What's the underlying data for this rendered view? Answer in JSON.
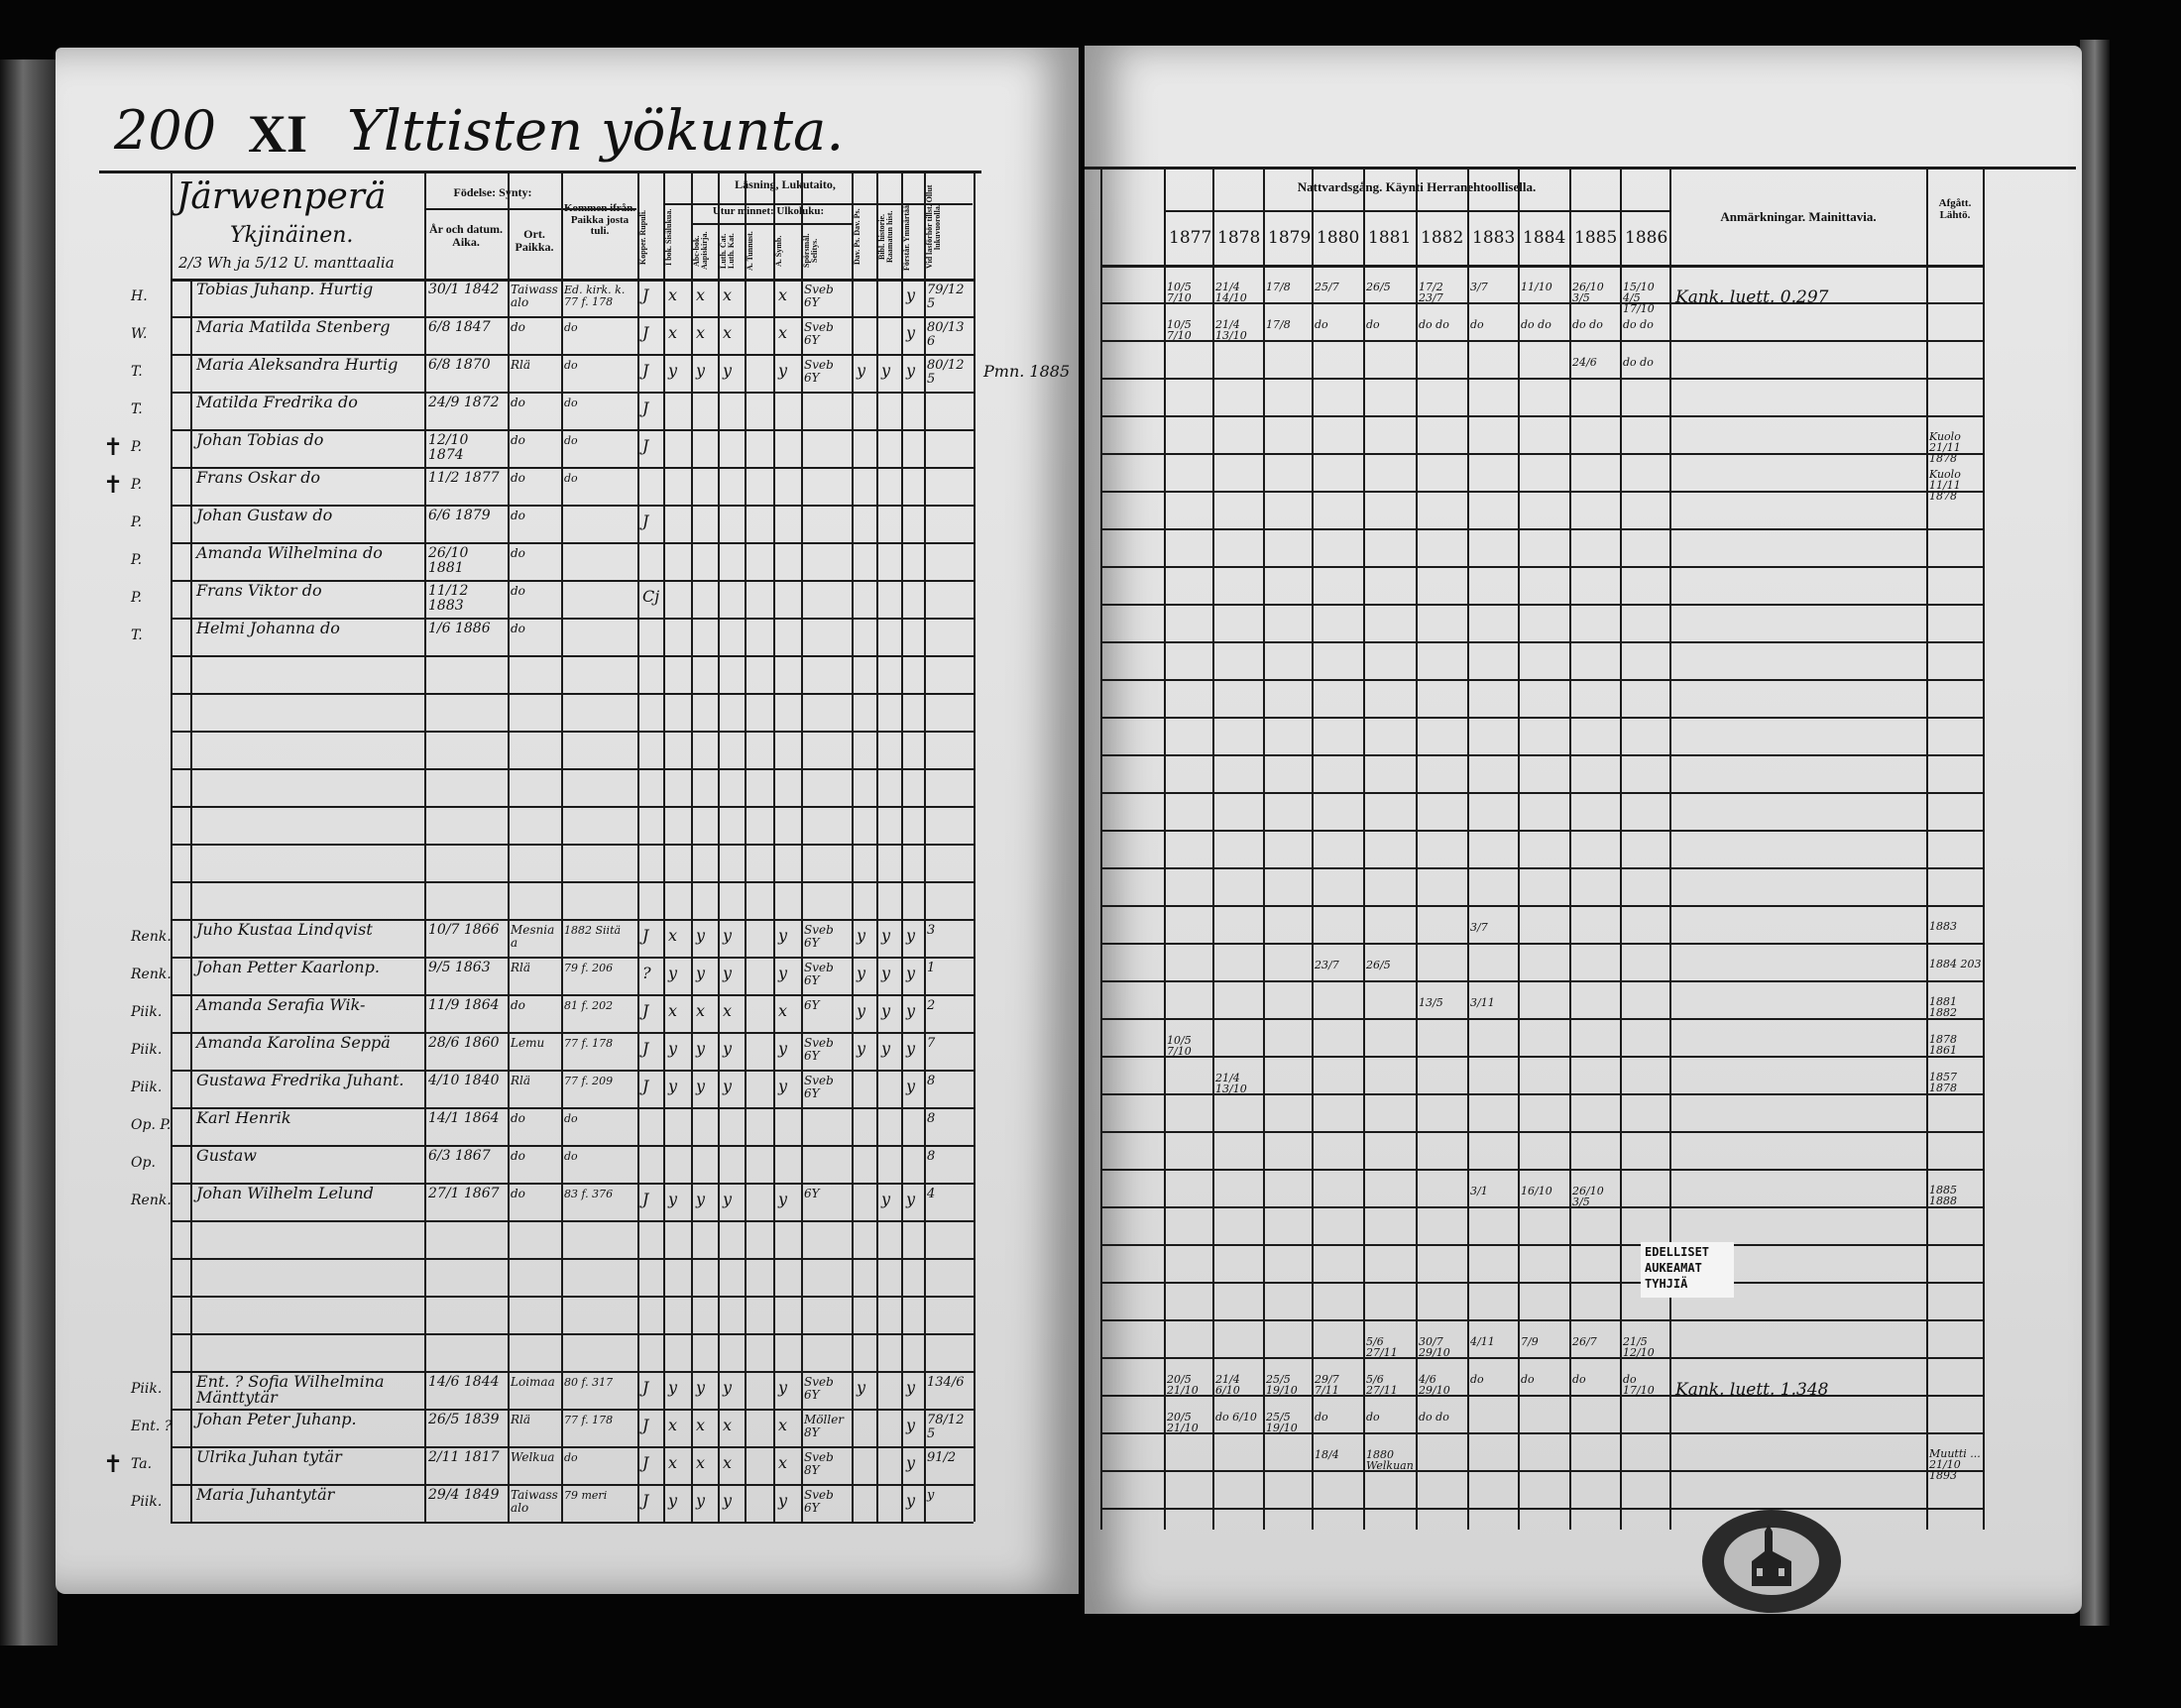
{
  "title": {
    "page_number": "200",
    "roman": "XI",
    "text": "Ylttisten yökunta."
  },
  "left_header": {
    "village": "Järwenperä",
    "holding": "Ykjinäinen.",
    "mantal": "2/3 Wh ja 5/12 U. manttaalia",
    "birth": "Födelse: Synty:",
    "year_date": "År och datum. Aika.",
    "place": "Ort. Paikka.",
    "came_from": "Kommen ifrån. Paikka josta tuli.",
    "reading": "Läsning, Lukutaito,",
    "by_heart": "Utur minnet: Ulkoluku:",
    "columns": [
      "Kopper. Rupuli.",
      "I bok. Sisälukua.",
      "Abc-bok. Aapiskirja.",
      "Luth. Cat. Luth. Kat.",
      "A. Tunnust.",
      "A. Symb.",
      "Spörsmål. Selitys.",
      "Dav. Ps. Dav. Ps.",
      "Bibl. historie. Raamatun hist.",
      "Förstår. Ymmärtää.",
      "Vid lasförhör tillst. Ollut lukuvuorolla."
    ]
  },
  "right_header": {
    "communion": "Nattvardsgång. Käynti Herranehtoollisella.",
    "years": [
      "1877",
      "1878",
      "1879",
      "1880",
      "1881",
      "1882",
      "1883",
      "1884",
      "1885",
      "1886"
    ],
    "remarks": "Anmärkningar. Mainittavia.",
    "departed": "Afgått. Lähtö."
  },
  "households": [
    [
      {
        "mark": "H.",
        "name": "Tobias Juhanp. Hurtig",
        "born": "30/1 1842",
        "place": "Taiwassalo",
        "from": "Ed. kirk. k. 77 f. 178",
        "marks": [
          "J",
          "x",
          "x",
          "x",
          "",
          "x",
          "Sveb 6Y",
          "",
          "",
          "y",
          "79/125"
        ],
        "communion": [
          "10/5 7/10",
          "21/4 14/10",
          "17/8",
          "25/7",
          "26/5",
          "17/2 23/7",
          "3/7",
          "11/10",
          "26/10 3/5",
          "15/10 4/5 17/10"
        ],
        "remark": "Kank. luett. 0.297",
        "departed": "",
        "cross": false
      },
      {
        "mark": "W.",
        "name": "Maria Matilda Stenberg",
        "born": "6/8 1847",
        "place": "do",
        "from": "do",
        "marks": [
          "J",
          "x",
          "x",
          "x",
          "",
          "x",
          "Sveb 6Y",
          "",
          "",
          "y",
          "80/136"
        ],
        "communion": [
          "10/5 7/10",
          "21/4 13/10",
          "17/8",
          "do",
          "do",
          "do do",
          "do",
          "do do",
          "do do",
          "do do"
        ],
        "remark": "",
        "departed": "",
        "cross": false
      },
      {
        "mark": "T.",
        "name": "Maria Aleksandra Hurtig",
        "born": "6/8 1870",
        "place": "Rlä",
        "from": "do",
        "marks": [
          "J",
          "y",
          "y",
          "y",
          "",
          "y",
          "Sveb 6Y",
          "y",
          "y",
          "y",
          "80/125"
        ],
        "communion": [
          "",
          "",
          "",
          "",
          "",
          "",
          "",
          "",
          "24/6",
          "do do"
        ],
        "remark": "",
        "side_note": "Pmn. 1885",
        "departed": "",
        "cross": false
      },
      {
        "mark": "T.",
        "name": "Matilda Fredrika do",
        "born": "24/9 1872",
        "place": "do",
        "from": "do",
        "marks": [
          "J",
          "",
          "",
          "",
          "",
          "",
          "",
          "",
          "",
          "",
          ""
        ],
        "communion": [],
        "remark": "",
        "departed": "",
        "cross": false
      },
      {
        "mark": "P.",
        "name": "Johan Tobias do",
        "born": "12/10 1874",
        "place": "do",
        "from": "do",
        "marks": [
          "J",
          "",
          "",
          "",
          "",
          "",
          "",
          "",
          "",
          "",
          ""
        ],
        "communion": [],
        "remark": "",
        "departed": "Kuolo 21/11 1878",
        "cross": true
      },
      {
        "mark": "P.",
        "name": "Frans Oskar do",
        "born": "11/2 1877",
        "place": "do",
        "from": "do",
        "marks": [],
        "communion": [],
        "remark": "",
        "departed": "Kuolo 11/11 1878",
        "cross": true
      },
      {
        "mark": "P.",
        "name": "Johan Gustaw do",
        "born": "6/6 1879",
        "place": "do",
        "from": "",
        "marks": [
          "J",
          "",
          "",
          "",
          "",
          "",
          "",
          "",
          "",
          "",
          ""
        ],
        "communion": [],
        "remark": "",
        "departed": "",
        "cross": false
      },
      {
        "mark": "P.",
        "name": "Amanda Wilhelmina do",
        "born": "26/10 1881",
        "place": "do",
        "from": "",
        "marks": [],
        "communion": [],
        "remark": "",
        "departed": "",
        "cross": false
      },
      {
        "mark": "P.",
        "name": "Frans Viktor do",
        "born": "11/12 1883",
        "place": "do",
        "from": "",
        "marks": [
          "Cj",
          "",
          "",
          "",
          "",
          "",
          "",
          "",
          "",
          "",
          ""
        ],
        "communion": [],
        "remark": "",
        "departed": "",
        "cross": false
      },
      {
        "mark": "T.",
        "name": "Helmi Johanna do",
        "born": "1/6 1886",
        "place": "do",
        "from": "",
        "marks": [],
        "communion": [],
        "remark": "",
        "departed": "",
        "cross": false
      }
    ],
    [
      {
        "mark": "Renk.",
        "name": "Juho Kustaa Lindqvist",
        "born": "10/7 1866",
        "place": "Mesniaa",
        "from": "1882 Siitä",
        "marks": [
          "J",
          "x",
          "y",
          "y",
          "",
          "y",
          "Sveb 6Y",
          "y",
          "y",
          "y",
          "3"
        ],
        "communion": [
          "",
          "",
          "",
          "",
          "",
          "",
          "3/7",
          "",
          "",
          ""
        ],
        "remark": "",
        "departed": "1883",
        "cross": false
      },
      {
        "mark": "Renk.",
        "name": "Johan Petter Kaarlonp.",
        "born": "9/5 1863",
        "place": "Rlä",
        "from": "79 f. 206",
        "marks": [
          "?",
          "y",
          "y",
          "y",
          "",
          "y",
          "Sveb 6Y",
          "y",
          "y",
          "y",
          "1"
        ],
        "communion": [
          "",
          "",
          "",
          "23/7",
          "26/5",
          "",
          "",
          "",
          "",
          ""
        ],
        "remark": "",
        "departed": "1884 203",
        "cross": false
      },
      {
        "mark": "Piik.",
        "name": "Amanda Serafia Wik-",
        "born": "11/9 1864",
        "place": "do",
        "from": "81 f. 202",
        "marks": [
          "J",
          "x",
          "x",
          "x",
          "",
          "x",
          "6Y",
          "y",
          "y",
          "y",
          "2"
        ],
        "communion": [
          "",
          "",
          "",
          "",
          "",
          "13/5",
          "3/11",
          "",
          "",
          ""
        ],
        "remark": "",
        "departed": "1881 1882",
        "cross": false
      },
      {
        "mark": "Piik.",
        "name": "Amanda Karolina Seppä",
        "born": "28/6 1860",
        "place": "Lemu",
        "from": "77 f. 178",
        "marks": [
          "J",
          "y",
          "y",
          "y",
          "",
          "y",
          "Sveb 6Y",
          "y",
          "y",
          "y",
          "7"
        ],
        "communion": [
          "10/5 7/10",
          "",
          "",
          "",
          "",
          "",
          "",
          "",
          "",
          ""
        ],
        "remark": "",
        "departed": "1878 1861",
        "cross": false
      },
      {
        "mark": "Piik.",
        "name": "Gustawa Fredrika Juhant.",
        "born": "4/10 1840",
        "place": "Rlä",
        "from": "77 f. 209",
        "marks": [
          "J",
          "y",
          "y",
          "y",
          "",
          "y",
          "Sveb 6Y",
          "",
          "",
          "y",
          "8"
        ],
        "communion": [
          "",
          "21/4 13/10",
          "",
          "",
          "",
          "",
          "",
          "",
          "",
          ""
        ],
        "remark": "",
        "departed": "1857 1878",
        "cross": false
      },
      {
        "mark": "Op. P.",
        "name": "Karl Henrik",
        "born": "14/1 1864",
        "place": "do",
        "from": "do",
        "marks": [
          "",
          "",
          "",
          "",
          "",
          "",
          "",
          "",
          "",
          "",
          "8"
        ],
        "communion": [],
        "remark": "",
        "departed": "",
        "cross": false
      },
      {
        "mark": "Op.",
        "name": "Gustaw",
        "born": "6/3 1867",
        "place": "do",
        "from": "do",
        "marks": [
          "",
          "",
          "",
          "",
          "",
          "",
          "",
          "",
          "",
          "",
          "8"
        ],
        "communion": [],
        "remark": "",
        "departed": "",
        "cross": false
      },
      {
        "mark": "Renk.",
        "name": "Johan Wilhelm Lelund",
        "born": "27/1 1867",
        "place": "do",
        "from": "83 f. 376",
        "marks": [
          "J",
          "y",
          "y",
          "y",
          "",
          "y",
          "6Y",
          "",
          "y",
          "y",
          "4"
        ],
        "communion": [
          "",
          "",
          "",
          "",
          "",
          "",
          "3/1",
          "16/10",
          "26/10 3/5",
          ""
        ],
        "remark": "",
        "departed": "1885 1888",
        "cross": false
      }
    ],
    [
      {
        "mark": "",
        "name": "",
        "born": "",
        "place": "",
        "from": "",
        "marks": [],
        "communion": [
          "",
          "",
          "",
          "",
          "5/6 27/11",
          "30/7 29/10",
          "4/11",
          "7/9",
          "26/7",
          "21/5 12/10"
        ],
        "remark": "",
        "departed": "",
        "cross": false
      },
      {
        "mark": "Piik.",
        "name": "Ent. ? Sofia Wilhelmina Mänttytär",
        "born": "14/6 1844",
        "place": "Loimaa",
        "from": "80 f. 317",
        "marks": [
          "J",
          "y",
          "y",
          "y",
          "",
          "y",
          "Sveb 6Y",
          "y",
          "",
          "y",
          "134/6"
        ],
        "communion": [
          "20/5 21/10",
          "21/4 6/10",
          "25/5 19/10",
          "29/7 7/11",
          "5/6 27/11",
          "4/6 29/10",
          "do",
          "do",
          "do",
          "do 17/10"
        ],
        "remark": "Kank. luett. 1.348",
        "departed": "",
        "cross": false
      },
      {
        "mark": "Ent. ?",
        "name": "Johan Peter Juhanp.",
        "born": "26/5 1839",
        "place": "Rlä",
        "from": "77 f. 178",
        "marks": [
          "J",
          "x",
          "x",
          "x",
          "",
          "x",
          "Möller 8Y",
          "",
          "",
          "y",
          "78/125"
        ],
        "communion": [
          "20/5 21/10",
          "do 6/10",
          "25/5 19/10",
          "do",
          "do",
          "do do",
          "",
          "",
          "",
          ""
        ],
        "remark": "",
        "departed": "",
        "cross": false
      },
      {
        "mark": "Ta.",
        "name": "Ulrika Juhan tytär",
        "born": "2/11 1817",
        "place": "Welkua",
        "from": "do",
        "marks": [
          "J",
          "x",
          "x",
          "x",
          "",
          "x",
          "Sveb 8Y",
          "",
          "",
          "y",
          "91/2"
        ],
        "communion": [
          "",
          "",
          "",
          "18/4",
          "1880 Welkuan",
          "",
          "",
          "",
          "",
          ""
        ],
        "remark": "",
        "departed": "Muutti ... 21/10 1893",
        "cross": true
      },
      {
        "mark": "Piik.",
        "name": "Maria Juhantytär",
        "born": "29/4 1849",
        "place": "Taiwassalo",
        "from": "79 meri",
        "marks": [
          "J",
          "y",
          "y",
          "y",
          "",
          "y",
          "Sveb 6Y",
          "",
          "",
          "y",
          "y"
        ],
        "communion": [],
        "remark": "",
        "departed": "",
        "cross": false
      }
    ]
  ],
  "sticker": [
    "EDELLISET",
    "AUKEAMAT",
    "TYHJIÄ"
  ],
  "colors": {
    "page": "#e4e4e4",
    "ink": "#111111",
    "background": "#050505"
  }
}
